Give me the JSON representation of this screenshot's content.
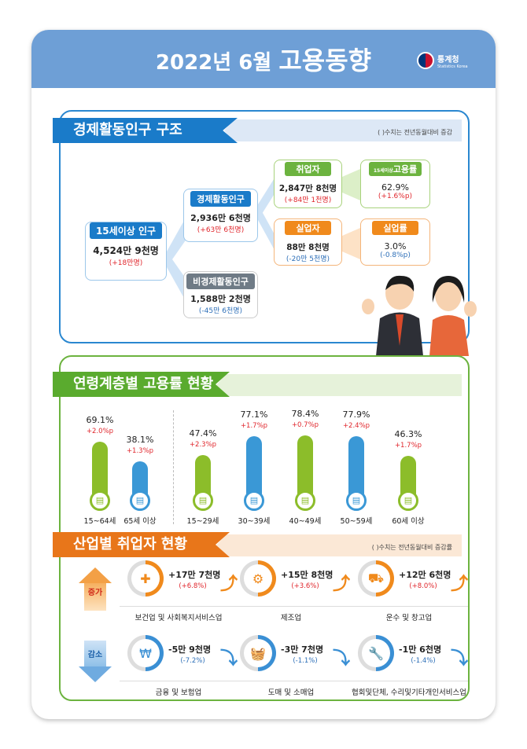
{
  "header": {
    "title_prefix": "2022년  6월",
    "title_main": "고용동향",
    "logo_ko": "통계청",
    "logo_en": "Statistics Korea"
  },
  "structure": {
    "title": "경제활동인구 구조",
    "note": "( )수치는 전년동월대비 증감",
    "pop15": {
      "label": "15세이상 인구",
      "value": "4,524만 9천명",
      "change": "(+18만명)"
    },
    "active": {
      "label": "경제활동인구",
      "value": "2,936만 6천명",
      "change": "(+63만 6천명)"
    },
    "inactive": {
      "label": "비경제활동인구",
      "value": "1,588만 2천명",
      "change": "(-45만 6천명)"
    },
    "employed": {
      "label": "취업자",
      "value": "2,847만 8천명",
      "change": "(+84만 1천명)"
    },
    "emp_rate": {
      "label_small": "15세이상",
      "label": "고용률",
      "value": "62.9%",
      "change": "(+1.6%p)"
    },
    "unemployed": {
      "label": "실업자",
      "value": "88만 8천명",
      "change": "(-20만 5천명)"
    },
    "unemp_rate": {
      "label": "실업률",
      "value": "3.0%",
      "change": "(-0.8%p)"
    }
  },
  "age": {
    "title": "연령계층별 고용률 현황",
    "items": [
      {
        "label": "15~64세",
        "value": "69.1%",
        "pct": 69.1,
        "change": "+2.0%p",
        "color": "#8cbd2a"
      },
      {
        "label": "65세 이상",
        "value": "38.1%",
        "pct": 38.1,
        "change": "+1.3%p",
        "color": "#3a98d6"
      },
      {
        "label": "15~29세",
        "value": "47.4%",
        "pct": 47.4,
        "change": "+2.3%p",
        "color": "#8cbd2a"
      },
      {
        "label": "30~39세",
        "value": "77.1%",
        "pct": 77.1,
        "change": "+1.7%p",
        "color": "#3a98d6"
      },
      {
        "label": "40~49세",
        "value": "78.4%",
        "pct": 78.4,
        "change": "+0.7%p",
        "color": "#8cbd2a"
      },
      {
        "label": "50~59세",
        "value": "77.9%",
        "pct": 77.9,
        "change": "+2.4%p",
        "color": "#3a98d6"
      },
      {
        "label": "60세 이상",
        "value": "46.3%",
        "pct": 46.3,
        "change": "+1.7%p",
        "color": "#8cbd2a"
      }
    ]
  },
  "industry": {
    "title": "산업별 취업자 현황",
    "note": "( )수치는 전년동월대비 증감률",
    "increase_label": "증가",
    "decrease_label": "감소",
    "increase": [
      {
        "label": "보건업 및 사회복지서비스업",
        "value": "+17만 7천명",
        "change": "(+6.8%)",
        "icon": "medical-kit-icon"
      },
      {
        "label": "제조업",
        "value": "+15만 8천명",
        "change": "(+3.6%)",
        "icon": "gear-icon"
      },
      {
        "label": "운수 및 창고업",
        "value": "+12만 6천명",
        "change": "(+8.0%)",
        "icon": "truck-icon"
      }
    ],
    "decrease": [
      {
        "label": "금융 및 보험업",
        "value": "-5만 9천명",
        "change": "(-7.2%)",
        "icon": "laptop-won-icon"
      },
      {
        "label": "도매 및 소매업",
        "value": "-3만 7천명",
        "change": "(-1.1%)",
        "icon": "basket-icon"
      },
      {
        "label": "협회및단체, 수리및기타개인서비스업",
        "value": "-1만 6천명",
        "change": "(-1.4%)",
        "icon": "wrench-icon"
      }
    ]
  }
}
